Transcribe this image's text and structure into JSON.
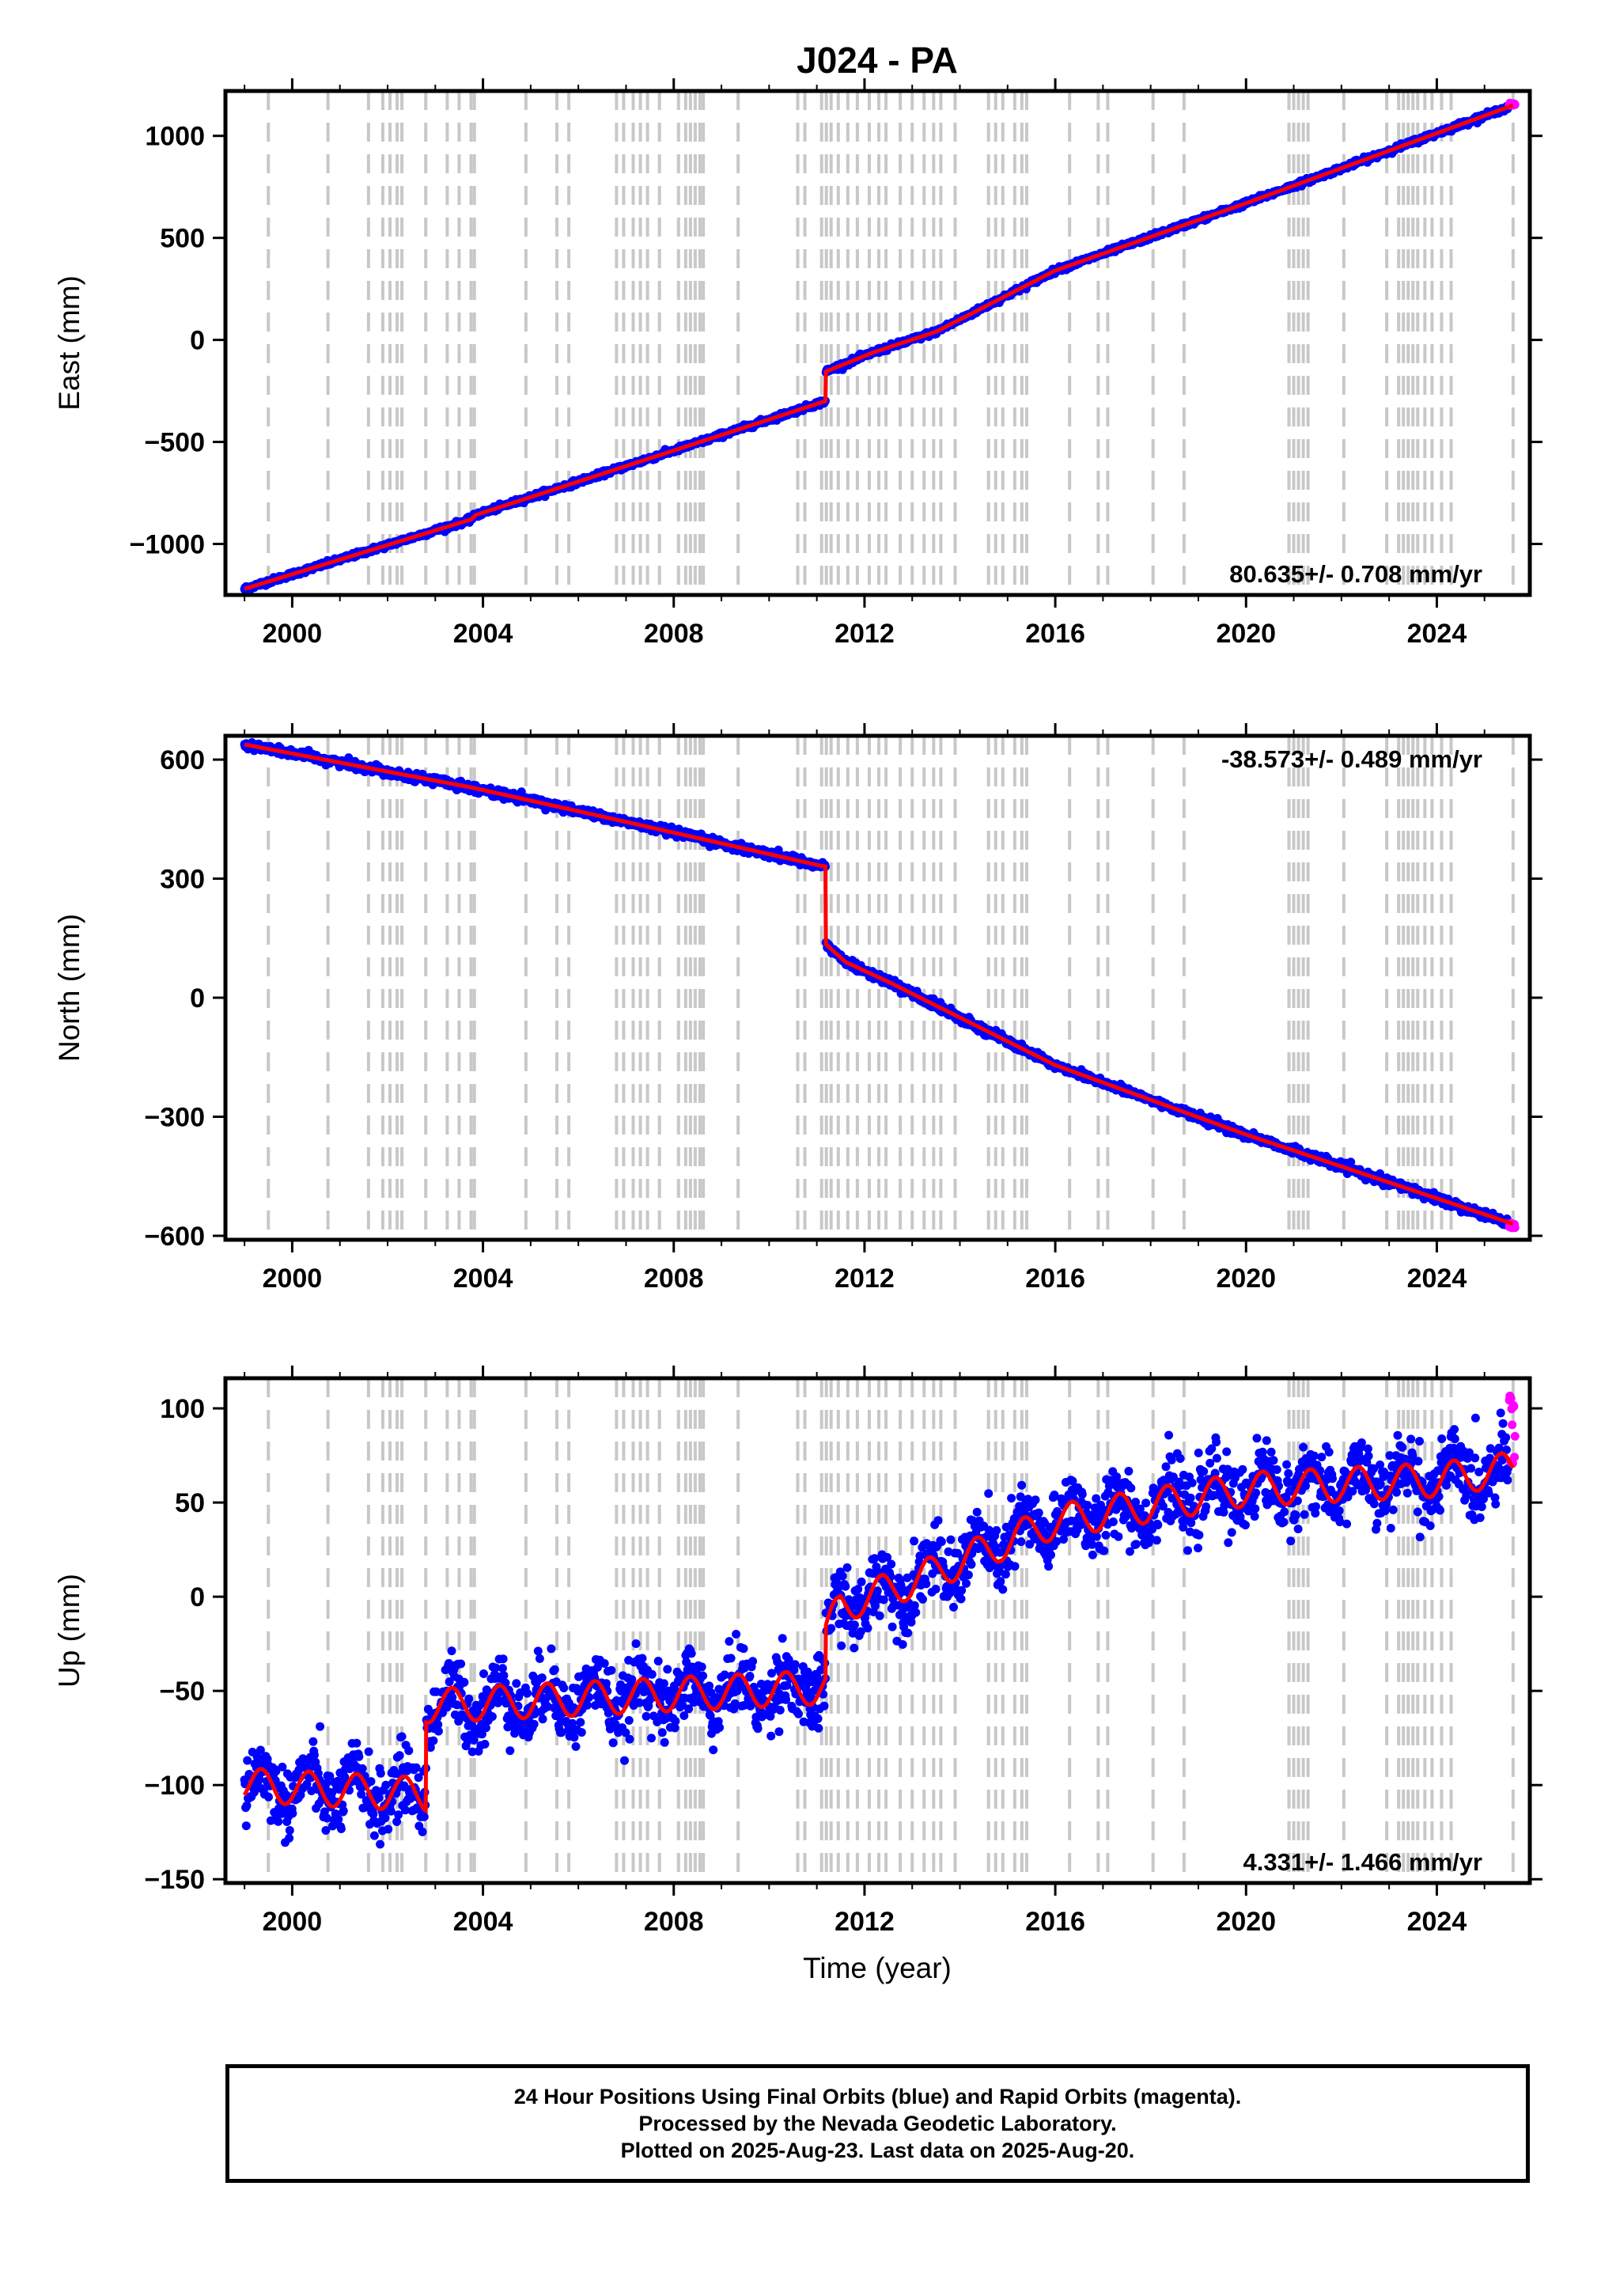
{
  "figure": {
    "title": "J024 - PA",
    "time_axis_label": "Time (year)",
    "footer_lines": [
      "24 Hour Positions Using Final Orbits (blue) and Rapid Orbits (magenta).",
      "Processed by the Nevada Geodetic Laboratory.",
      "Plotted on 2025-Aug-23. Last data on 2025-Aug-20."
    ]
  },
  "colors": {
    "final_orbits": "#0000ff",
    "rapid_orbits": "#ff00ff",
    "model_fit": "#ff0000",
    "equipment_change_lines": "#c8c8c8"
  },
  "chart_data": [
    {
      "type": "scatter",
      "ylabel": "East (mm)",
      "xlabel": "",
      "xlim": [
        1998.6,
        2025.95
      ],
      "ylim": [
        -1250,
        1220
      ],
      "x_ticks": [
        2000,
        2004,
        2008,
        2012,
        2016,
        2020,
        2024
      ],
      "y_ticks": [
        -1000,
        -500,
        0,
        500,
        1000
      ],
      "y_tick_labels": [
        "−1000",
        "−500",
        "0",
        "500",
        "1000"
      ],
      "rate_annotation": "80.635+/- 0.708 mm/yr",
      "rate_position": "bottom-right",
      "fit_knots": [
        [
          1999.0,
          -1220
        ],
        [
          2003.75,
          -880
        ],
        [
          2003.85,
          -858
        ],
        [
          2011.18,
          -300
        ],
        [
          2011.19,
          -155
        ],
        [
          2012.2,
          -60
        ],
        [
          2013.5,
          40
        ],
        [
          2016.0,
          340
        ],
        [
          2020.0,
          670
        ],
        [
          2025.6,
          1150
        ]
      ],
      "noise_mm": 6,
      "seasonal_amplitude_mm": 0,
      "data_start": 1999.0,
      "data_end": 2025.5,
      "rapid_start": 2025.52,
      "rapid_end": 2025.64,
      "rapid_range_mm": [
        1150,
        1162
      ]
    },
    {
      "type": "scatter",
      "ylabel": "North (mm)",
      "xlabel": "",
      "xlim": [
        1998.6,
        2025.95
      ],
      "ylim": [
        -610,
        660
      ],
      "x_ticks": [
        2000,
        2004,
        2008,
        2012,
        2016,
        2020,
        2024
      ],
      "y_ticks": [
        -600,
        -300,
        0,
        300,
        600
      ],
      "y_tick_labels": [
        "−600",
        "−300",
        "0",
        "300",
        "600"
      ],
      "rate_annotation": "-38.573+/- 0.489 mm/yr",
      "rate_position": "top-right",
      "fit_knots": [
        [
          1999.0,
          638
        ],
        [
          2003.75,
          530
        ],
        [
          2006.0,
          470
        ],
        [
          2011.18,
          330
        ],
        [
          2011.19,
          135
        ],
        [
          2011.6,
          90
        ],
        [
          2012.5,
          40
        ],
        [
          2016.0,
          -170
        ],
        [
          2020.0,
          -345
        ],
        [
          2025.6,
          -570
        ]
      ],
      "noise_mm": 5,
      "seasonal_amplitude_mm": 0,
      "data_start": 1999.0,
      "data_end": 2025.5,
      "rapid_start": 2025.52,
      "rapid_end": 2025.64,
      "rapid_range_mm": [
        -582,
        -568
      ]
    },
    {
      "type": "scatter",
      "ylabel": "Up (mm)",
      "xlabel": "Time (year)",
      "xlim": [
        1998.6,
        2025.95
      ],
      "ylim": [
        -152,
        116
      ],
      "x_ticks": [
        2000,
        2004,
        2008,
        2012,
        2016,
        2020,
        2024
      ],
      "y_ticks": [
        -150,
        -100,
        -50,
        0,
        50,
        100
      ],
      "y_tick_labels": [
        "−150",
        "−100",
        "−50",
        "0",
        "50",
        "100"
      ],
      "rate_annotation": "4.331+/- 1.466 mm/yr",
      "rate_position": "bottom-right",
      "fit_knots": [
        [
          1999.0,
          -100
        ],
        [
          2002.8,
          -105
        ],
        [
          2002.81,
          -58
        ],
        [
          2011.18,
          -48
        ],
        [
          2011.19,
          -20
        ],
        [
          2011.5,
          -5
        ],
        [
          2013.0,
          8
        ],
        [
          2016.0,
          40
        ],
        [
          2020.0,
          57
        ],
        [
          2024.0,
          62
        ],
        [
          2025.6,
          68
        ]
      ],
      "noise_mm": 9,
      "seasonal_amplitude_mm": 9,
      "data_start": 1999.0,
      "data_end": 2025.5,
      "rapid_start": 2025.52,
      "rapid_end": 2025.64,
      "rapid_range_mm": [
        70,
        108
      ]
    }
  ],
  "equipment_change_lines": [
    1999.5,
    2000.75,
    2001.6,
    2001.9,
    2002.05,
    2002.2,
    2002.3,
    2002.8,
    2003.25,
    2003.5,
    2003.75,
    2003.82,
    2004.9,
    2005.55,
    2005.8,
    2006.8,
    2006.95,
    2007.15,
    2007.3,
    2007.45,
    2007.7,
    2008.1,
    2008.25,
    2008.35,
    2008.45,
    2008.55,
    2008.62,
    2009.35,
    2010.6,
    2010.75,
    2011.1,
    2011.2,
    2011.3,
    2011.45,
    2011.65,
    2011.85,
    2012.1,
    2012.3,
    2012.45,
    2012.75,
    2013.0,
    2013.25,
    2013.45,
    2013.6,
    2013.9,
    2014.6,
    2014.75,
    2014.9,
    2015.15,
    2015.3,
    2015.4,
    2016.3,
    2016.9,
    2017.1,
    2018.05,
    2018.7,
    2020.9,
    2021.0,
    2021.1,
    2021.2,
    2021.3,
    2022.05,
    2022.95,
    2023.2,
    2023.3,
    2023.4,
    2023.5,
    2023.6,
    2023.75,
    2023.9,
    2024.1,
    2024.3,
    2025.6
  ]
}
